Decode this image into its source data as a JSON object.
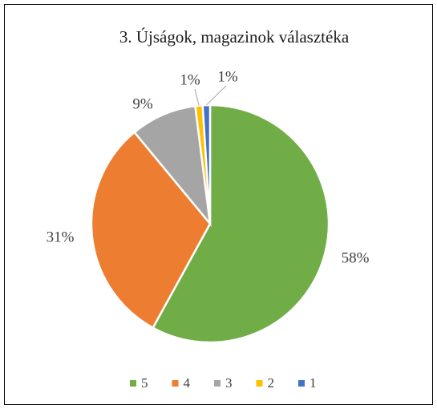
{
  "chart_data": {
    "type": "pie",
    "title": "3. Újságok, magazinok választéka",
    "categories": [
      "5",
      "4",
      "3",
      "2",
      "1"
    ],
    "values": [
      58,
      31,
      9,
      1,
      1
    ],
    "value_labels": [
      "58%",
      "31%",
      "9%",
      "1%",
      "1%"
    ],
    "colors": [
      "#70ad47",
      "#ed7d31",
      "#a5a5a5",
      "#ffc000",
      "#4472c4"
    ],
    "legend": "bottom"
  }
}
